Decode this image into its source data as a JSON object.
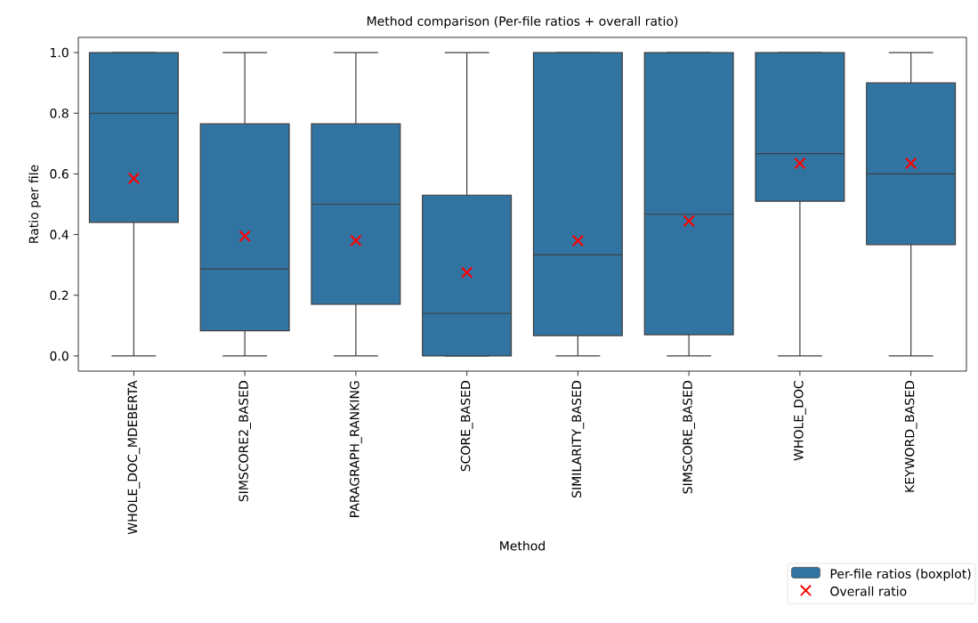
{
  "chart_data": {
    "type": "box",
    "title": "Method comparison (Per-file ratios + overall ratio)",
    "xlabel": "Method",
    "ylabel": "Ratio per file",
    "categories": [
      "WHOLE_DOC_MDEBERTA",
      "SIMSCORE2_BASED",
      "PARAGRAPH_RANKING",
      "SCORE_BASED",
      "SIMILARITY_BASED",
      "SIMSCORE_BASED",
      "WHOLE_DOC",
      "KEYWORD_BASED"
    ],
    "ylim": [
      -0.05,
      1.05
    ],
    "yticks": [
      {
        "value": 0,
        "label": "0.0"
      },
      0.2,
      0.4,
      0.6,
      0.8,
      {
        "value": 1,
        "label": "1.0"
      }
    ],
    "legend": "bottom right",
    "series": [
      {
        "name": "Per-file ratios (boxplot)",
        "type": "box",
        "color": "#3274a1",
        "boxes": [
          {
            "low": 0,
            "q1": 0.44,
            "median": 0.8,
            "q3": 1.0,
            "high": 1.0
          },
          {
            "low": 0,
            "q1": 0.083,
            "median": 0.286,
            "q3": 0.765,
            "high": 1.0
          },
          {
            "low": 0,
            "q1": 0.17,
            "median": 0.5,
            "q3": 0.765,
            "high": 1.0
          },
          {
            "low": 0,
            "q1": 0,
            "median": 0.14,
            "q3": 0.53,
            "high": 1.0
          },
          {
            "low": 0,
            "q1": 0.067,
            "median": 0.333,
            "q3": 1.0,
            "high": 1.0
          },
          {
            "low": 0,
            "q1": 0.07,
            "median": 0.467,
            "q3": 1.0,
            "high": 1.0
          },
          {
            "low": 0,
            "q1": 0.51,
            "median": 0.667,
            "q3": 1.0,
            "high": 1.0
          },
          {
            "low": 0,
            "q1": 0.367,
            "median": 0.6,
            "q3": 0.9,
            "high": 1.0
          }
        ]
      },
      {
        "name": "Overall ratio",
        "type": "scatter",
        "color": "#ff0000",
        "marker": "cross",
        "x": [
          "WHOLE_DOC_MDEBERTA",
          "SIMSCORE2_BASED",
          "PARAGRAPH_RANKING",
          "SCORE_BASED",
          "SIMILARITY_BASED",
          "SIMSCORE_BASED",
          "WHOLE_DOC",
          "KEYWORD_BASED"
        ],
        "values": [
          0.585,
          0.395,
          0.38,
          0.275,
          0.38,
          0.445,
          0.635,
          0.635
        ]
      }
    ]
  }
}
